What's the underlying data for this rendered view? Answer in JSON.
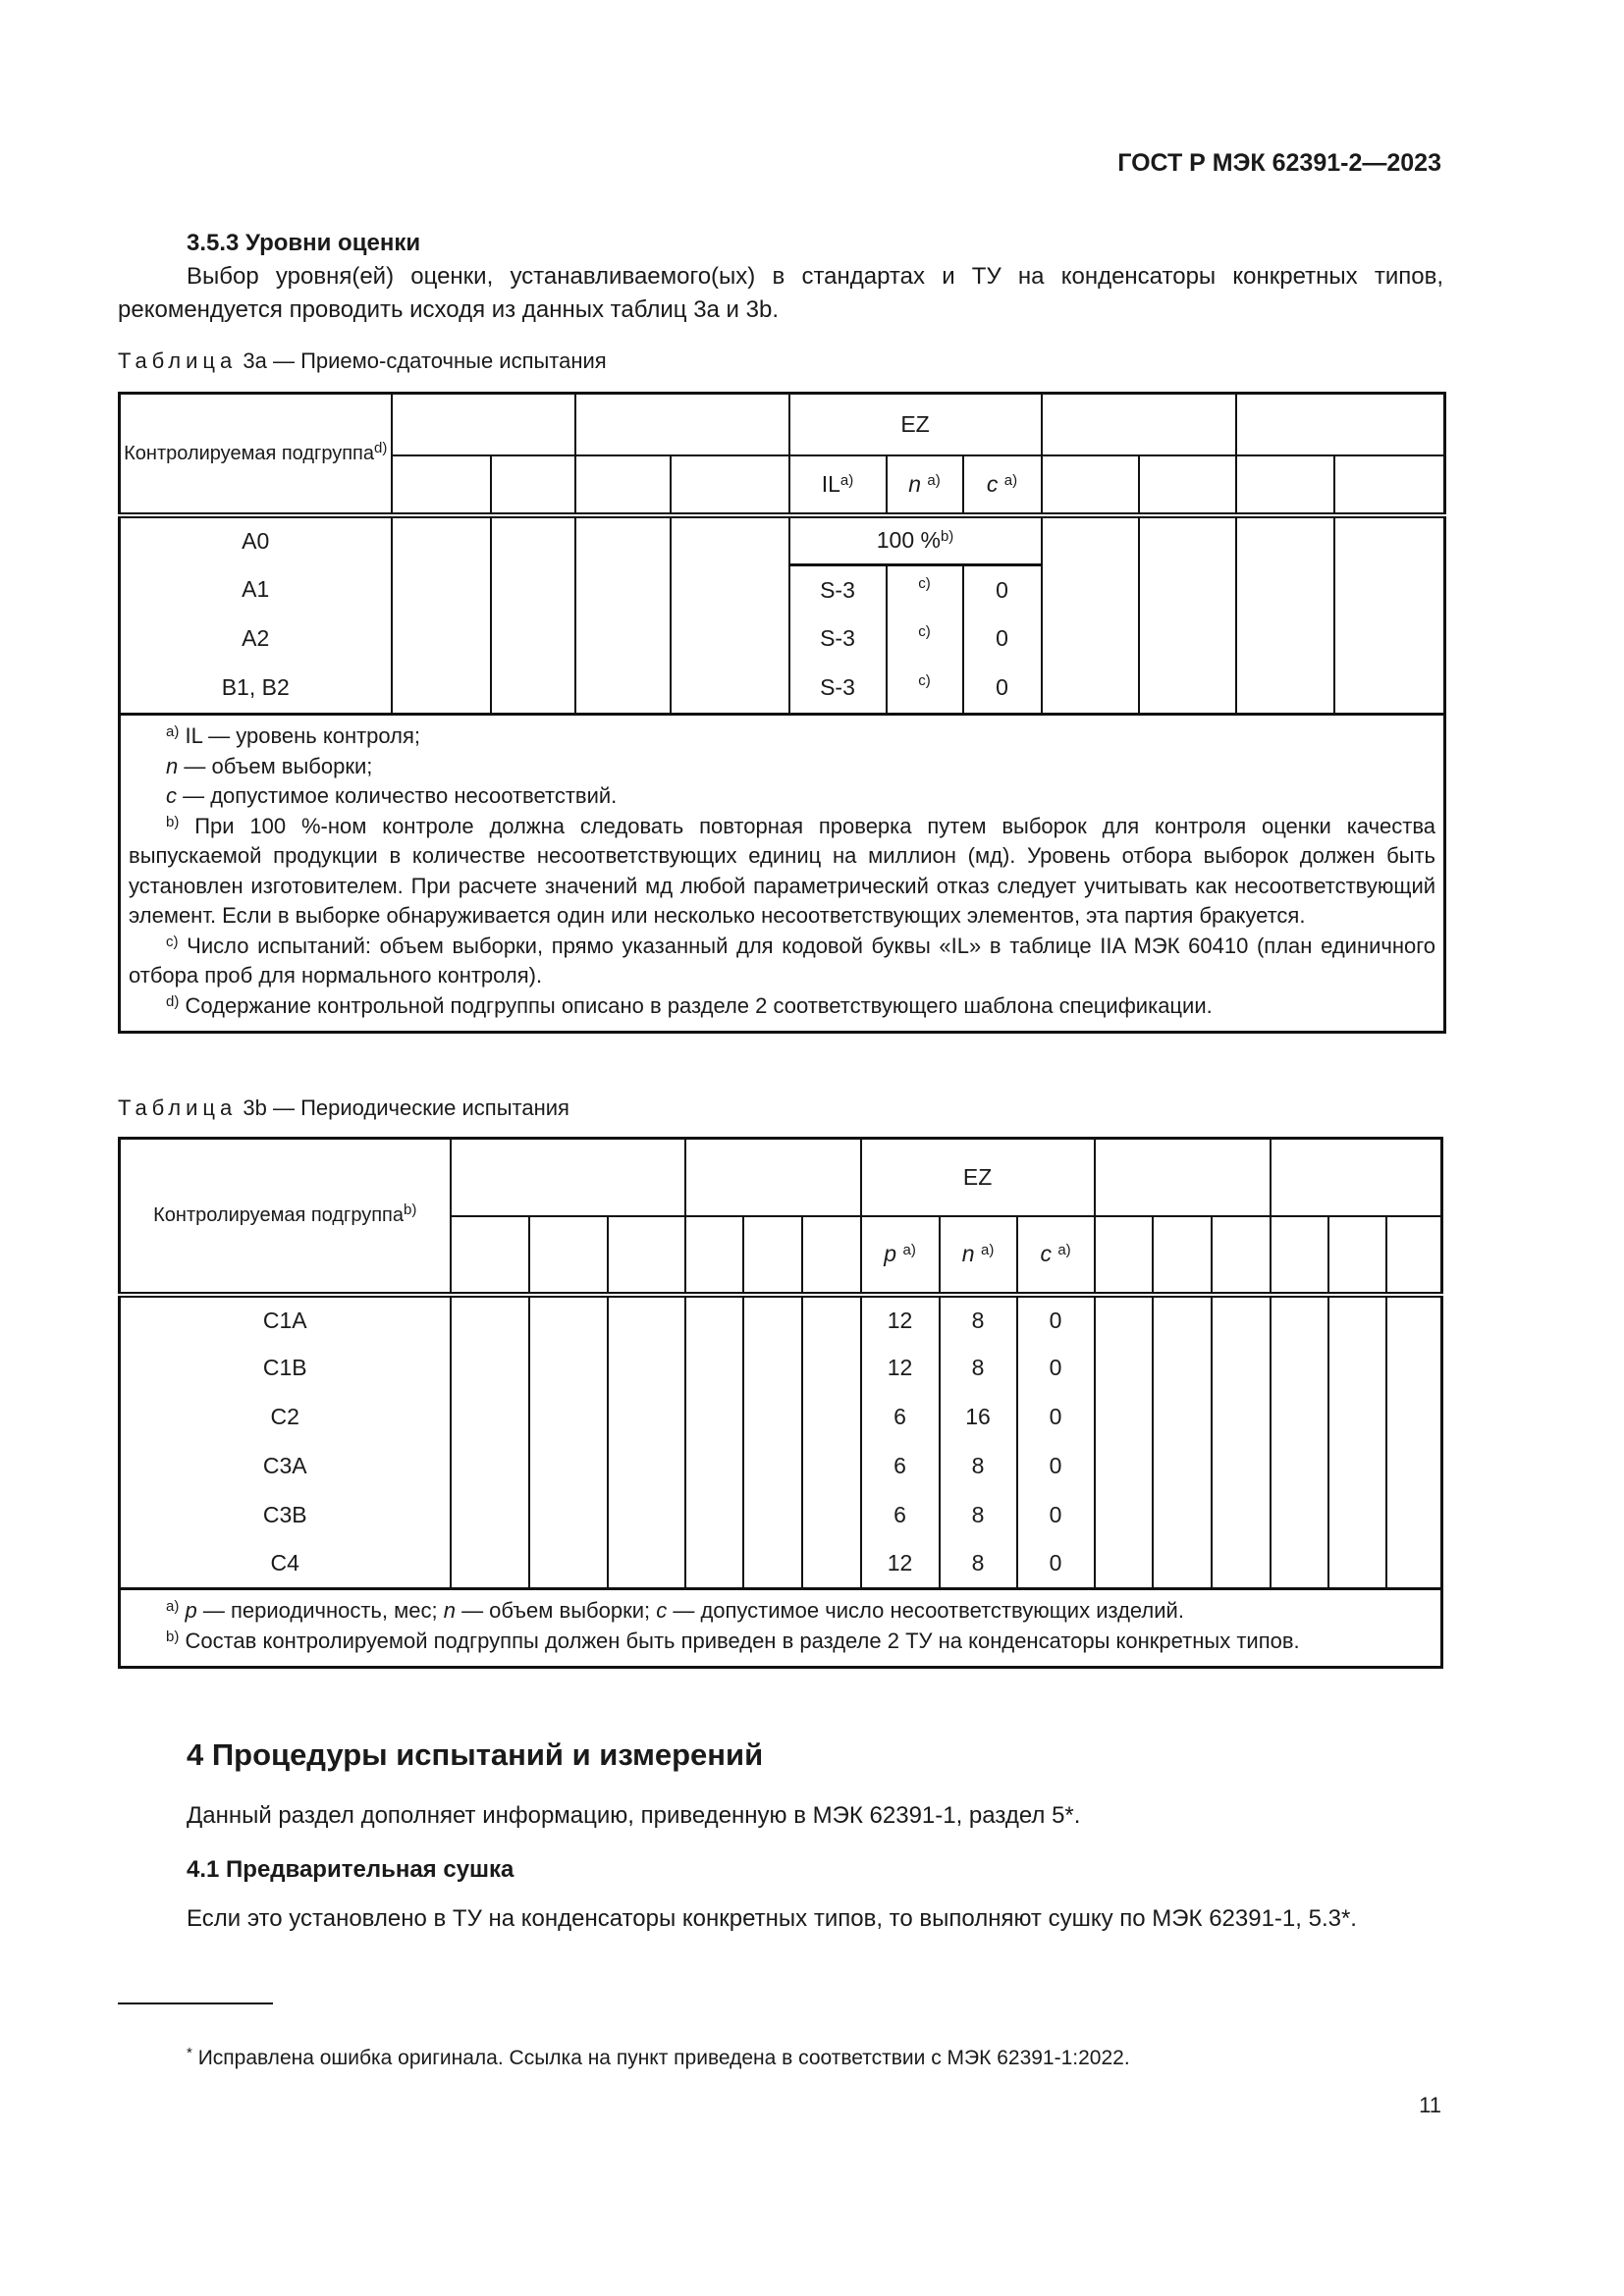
{
  "header": {
    "standard": "ГОСТ Р МЭК 62391-2—2023"
  },
  "section_353": {
    "title": "3.5.3 Уровни оценки",
    "text": "Выбор уровня(ей) оценки, устанавливаемого(ых) в стандартах и ТУ на конденсаторы конкретных типов, рекомендуется проводить исходя из данных таблиц 3а и 3b."
  },
  "table3a": {
    "caption_word": "Таблица",
    "caption": "3а — Приемо-сдаточные испытания",
    "col_header": "Контролируемая подгруппа",
    "col_header_sup": "d)",
    "ez": "EZ",
    "sub": [
      {
        "label": "IL",
        "sup": "a)"
      },
      {
        "label": "n",
        "sup": "a)"
      },
      {
        "label": "c",
        "sup": "a)"
      }
    ],
    "a0": {
      "group": "A0",
      "value": "100 %",
      "sup": "b)"
    },
    "rows": [
      {
        "group": "A1",
        "il": "S-3",
        "n": "c)",
        "c": "0"
      },
      {
        "group": "A2",
        "il": "S-3",
        "n": "c)",
        "c": "0"
      },
      {
        "group": "B1, B2",
        "il": "S-3",
        "n": "c)",
        "c": "0"
      }
    ],
    "notes": {
      "a_mark": "a)",
      "a1": "IL — уровень контроля;",
      "a2_var": "n",
      "a2": " — объем выборки;",
      "a3_var": "c",
      "a3": " — допустимое количество несоответствий.",
      "b_mark": "b)",
      "b": "При 100 %-ном контроле должна следовать повторная проверка путем выборок для контроля оценки качества выпускаемой продукции в количестве несоответствующих единиц на миллион (мд). Уровень отбора выборок должен быть установлен изготовителем. При расчете значений мд любой параметрический отказ следует учитывать как несоответствующий элемент. Если в выборке обнаруживается один или несколько несоответствующих элементов, эта партия бракуется.",
      "c_mark": "c)",
      "c": "Число испытаний: объем выборки, прямо указанный для кодовой буквы «IL» в таблице IIA МЭК 60410 (план единичного отбора проб для нормального контроля).",
      "d_mark": "d)",
      "d": "Содержание контрольной подгруппы описано в разделе 2 соответствующего шаблона спецификации."
    }
  },
  "table3b": {
    "caption_word": "Таблица",
    "caption": "3b — Периодические испытания",
    "col_header": "Контролируемая подгруппа",
    "col_header_sup": "b)",
    "ez": "EZ",
    "sub": [
      {
        "label": "p",
        "sup": "a)"
      },
      {
        "label": "n",
        "sup": "a)"
      },
      {
        "label": "c",
        "sup": "a)"
      }
    ],
    "rows": [
      {
        "group": "C1A",
        "p": "12",
        "n": "8",
        "c": "0"
      },
      {
        "group": "C1B",
        "p": "12",
        "n": "8",
        "c": "0"
      },
      {
        "group": "C2",
        "p": "6",
        "n": "16",
        "c": "0"
      },
      {
        "group": "C3A",
        "p": "6",
        "n": "8",
        "c": "0"
      },
      {
        "group": "C3B",
        "p": "6",
        "n": "8",
        "c": "0"
      },
      {
        "group": "C4",
        "p": "12",
        "n": "8",
        "c": "0"
      }
    ],
    "notes": {
      "a_mark": "a)",
      "a_p": "p",
      "a1": " — периодичность, мес; ",
      "a_n": "n",
      "a2": " — объем выборки; ",
      "a_c": "c",
      "a3": " — допустимое число несоответствующих изделий.",
      "b_mark": "b)",
      "b": "Состав контролируемой подгруппы должен быть приведен в разделе 2 ТУ на конденсаторы конкретных типов."
    }
  },
  "section4": {
    "title": "4 Процедуры испытаний и измерений",
    "text": "Данный раздел дополняет информацию, приведенную в МЭК 62391-1, раздел 5*.",
    "sub41_title": "4.1 Предварительная сушка",
    "sub41_text": "Если это установлено в ТУ на конденсаторы конкретных типов, то выполняют сушку по МЭК 62391-1, 5.3*."
  },
  "footnote": {
    "mark": "*",
    "text": "Исправлена ошибка оригинала. Ссылка на пункт приведена в соответствии с МЭК 62391-1:2022."
  },
  "page_number": "11"
}
